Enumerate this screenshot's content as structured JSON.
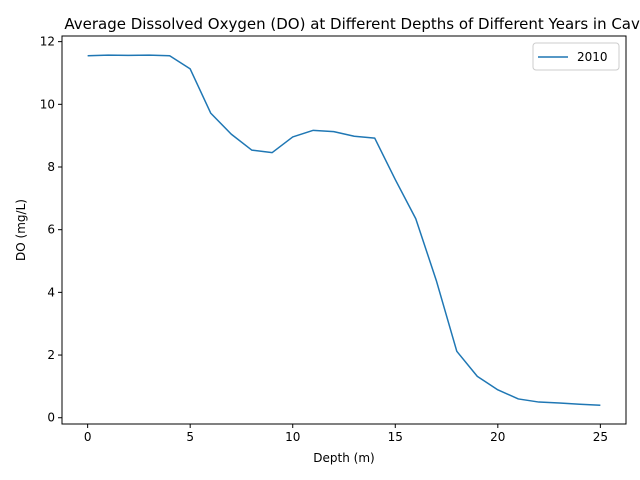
{
  "chart_data": {
    "type": "line",
    "title": "Average Dissolved Oxygen (DO) at Different Depths of Different Years in Cavendish",
    "xlabel": "Depth (m)",
    "ylabel": "DO (mg/L)",
    "xlim": [
      -1.25,
      26.25
    ],
    "ylim": [
      -0.2,
      12.18
    ],
    "xticks": [
      0,
      5,
      10,
      15,
      20,
      25
    ],
    "yticks": [
      0,
      2,
      4,
      6,
      8,
      10,
      12
    ],
    "grid": false,
    "legend_position": "top-right",
    "series": [
      {
        "name": "2010",
        "color": "#1f77b4",
        "x": [
          0,
          1,
          2,
          3,
          4,
          5,
          6,
          7,
          8,
          9,
          10,
          11,
          12,
          13,
          14,
          15,
          16,
          17,
          18,
          19,
          20,
          21,
          22,
          23,
          24,
          25
        ],
        "y": [
          11.55,
          11.57,
          11.56,
          11.57,
          11.55,
          11.13,
          9.72,
          9.05,
          8.54,
          8.46,
          8.96,
          9.17,
          9.13,
          8.98,
          8.92,
          7.6,
          6.35,
          4.38,
          2.12,
          1.32,
          0.89,
          0.6,
          0.5,
          0.47,
          0.43,
          0.4
        ]
      }
    ]
  }
}
